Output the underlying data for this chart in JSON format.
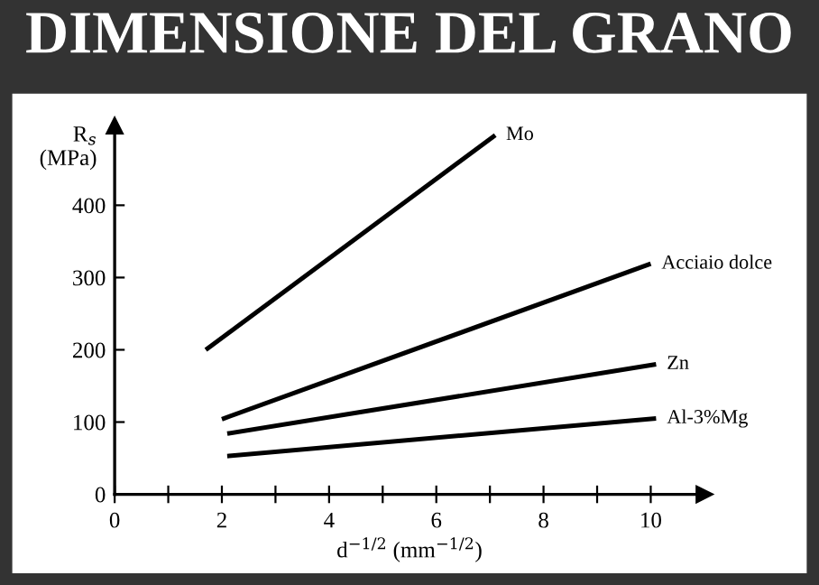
{
  "chart_data": {
    "type": "line",
    "title": "DIMENSIONE DEL GRANO",
    "xlabel": "d$^{−1/2}$ (mm$^{−1/2}$)",
    "ylabel": "R$_{s}$\n(MPa)",
    "xlim": [
      0,
      11
    ],
    "ylim": [
      0,
      510
    ],
    "xticks": [
      0,
      {
        "value": 1,
        "label": null
      },
      2,
      {
        "value": 3,
        "label": null
      },
      4,
      {
        "value": 5,
        "label": null
      },
      6,
      {
        "value": 7,
        "label": null
      },
      8,
      {
        "value": 9,
        "label": null
      },
      10
    ],
    "yticks": [
      0,
      100,
      200,
      300,
      400
    ],
    "grid": false,
    "legend": false,
    "marker": "none",
    "line_style": "solid",
    "series": [
      {
        "name": "Mo",
        "color": "#000000",
        "x": [
          1.7,
          7.1
        ],
        "values": [
          200,
          497
        ]
      },
      {
        "name": "Acciaio dolce",
        "color": "#000000",
        "x": [
          2.0,
          10.0
        ],
        "values": [
          104,
          319
        ]
      },
      {
        "name": "Zn",
        "color": "#000000",
        "x": [
          2.1,
          10.1
        ],
        "values": [
          84,
          180
        ]
      },
      {
        "name": "Al-3%Mg",
        "color": "#000000",
        "x": [
          2.1,
          10.1
        ],
        "values": [
          53,
          105
        ]
      }
    ]
  }
}
